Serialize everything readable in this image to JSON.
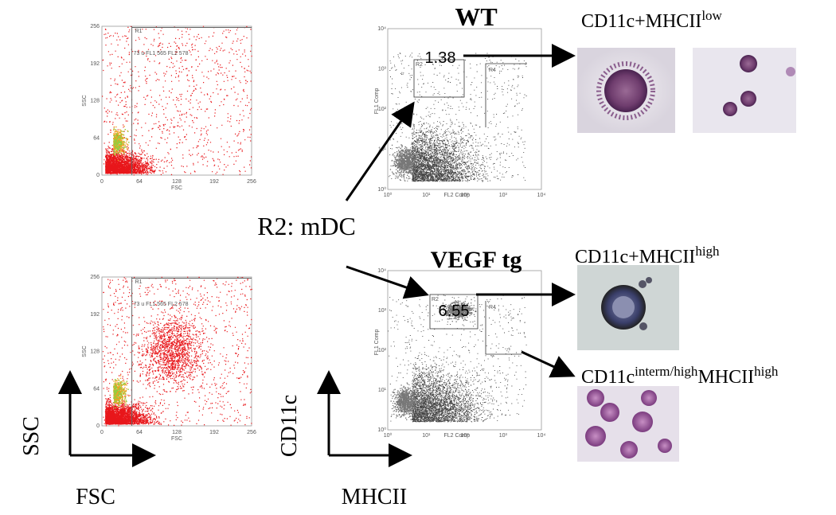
{
  "scatter_plots": [
    {
      "gate": "R1",
      "annotation": "73 u FL1 565 FL2 578",
      "x_label": "FSC",
      "y_label": "SSC",
      "x_ticks": [
        "0",
        "64",
        "128",
        "192",
        "256"
      ],
      "y_ticks": [
        "0",
        "64",
        "128",
        "192",
        "256"
      ]
    },
    {
      "gate": "R1",
      "annotation": "73 u FL1 565 FL2 578",
      "x_label": "FSC",
      "y_label": "SSC",
      "x_ticks": [
        "0",
        "64",
        "128",
        "192",
        "256"
      ],
      "y_ticks": [
        "0",
        "64",
        "128",
        "192",
        "256"
      ]
    }
  ],
  "fluor_plots": [
    {
      "title": "WT",
      "percent": "1.38",
      "gates": [
        "R2",
        "R4"
      ],
      "x_label": "FL2 Comp",
      "y_label": "FL1 Comp",
      "ticks": [
        "10⁰",
        "10¹",
        "10²",
        "10³",
        "10⁴"
      ]
    },
    {
      "title": "VEGF tg",
      "percent": "6.55",
      "gates": [
        "R2",
        "R4"
      ],
      "x_label": "FL2 Comp",
      "y_label": "FL1 Comp",
      "ticks": [
        "10⁰",
        "10¹",
        "10²",
        "10³",
        "10⁴"
      ]
    }
  ],
  "gate_label": "R2: mDC",
  "cell_labels": [
    {
      "main": "CD11c+MHCII",
      "sup": "low"
    },
    {
      "main": "CD11c+MHCII",
      "sup": "high"
    },
    {
      "prefix": "CD11c",
      "sup1": "interm/high",
      "main": "MHCII",
      "sup2": "high"
    }
  ],
  "axis_labels": {
    "ssc": "SSC",
    "fsc": "FSC",
    "cd11c": "CD11c",
    "mhcii": "MHCII"
  }
}
